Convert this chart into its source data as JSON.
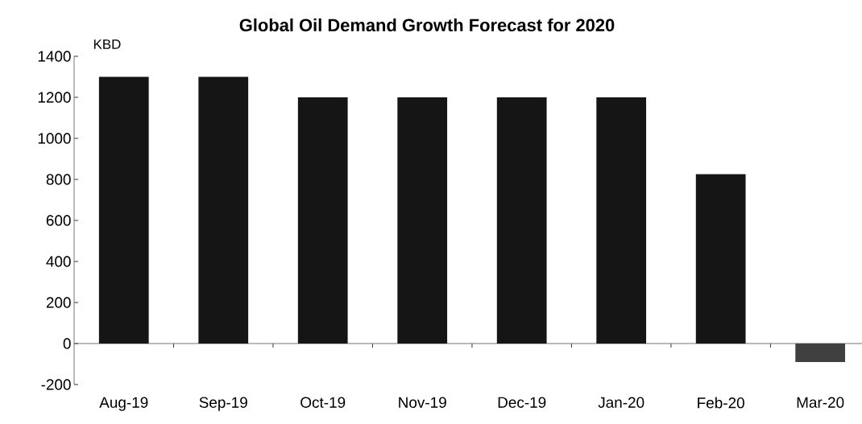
{
  "chart_data": {
    "type": "bar",
    "title": "Global Oil Demand Growth Forecast for 2020",
    "annotations": [
      "KBD"
    ],
    "categories": [
      "Aug-19",
      "Sep-19",
      "Oct-19",
      "Nov-19",
      "Dec-19",
      "Jan-20",
      "Feb-20",
      "Mar-20"
    ],
    "values": [
      1300,
      1300,
      1200,
      1200,
      1200,
      1200,
      825,
      -90
    ],
    "colors": [
      "#151515",
      "#151515",
      "#151515",
      "#151515",
      "#151515",
      "#151515",
      "#151515",
      "#404040"
    ],
    "ylim": [
      -200,
      1400
    ],
    "yticks": [
      -200,
      0,
      200,
      400,
      600,
      800,
      1000,
      1200,
      1400
    ]
  }
}
